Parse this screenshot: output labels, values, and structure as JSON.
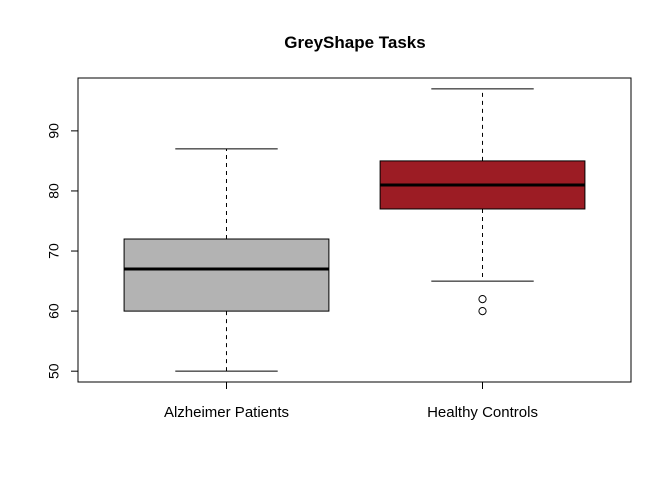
{
  "chart_data": {
    "type": "boxplot",
    "title": "GreyShape Tasks",
    "xlabel": "",
    "ylabel": "",
    "categories": [
      "Alzheimer Patients",
      "Healthy Controls"
    ],
    "series": [
      {
        "name": "Alzheimer Patients",
        "color": "#b3b3b3",
        "whisker_low": 50,
        "q1": 60,
        "median": 67,
        "q3": 72,
        "whisker_high": 87,
        "outliers": []
      },
      {
        "name": "Healthy Controls",
        "color": "#9c1c24",
        "whisker_low": 65,
        "q1": 77,
        "median": 81,
        "q3": 85,
        "whisker_high": 97,
        "outliers": [
          62,
          60
        ]
      }
    ],
    "yticks": [
      50,
      60,
      70,
      80,
      90
    ],
    "ylim": [
      48.2,
      98.8
    ],
    "grid": false,
    "legend": "none"
  }
}
